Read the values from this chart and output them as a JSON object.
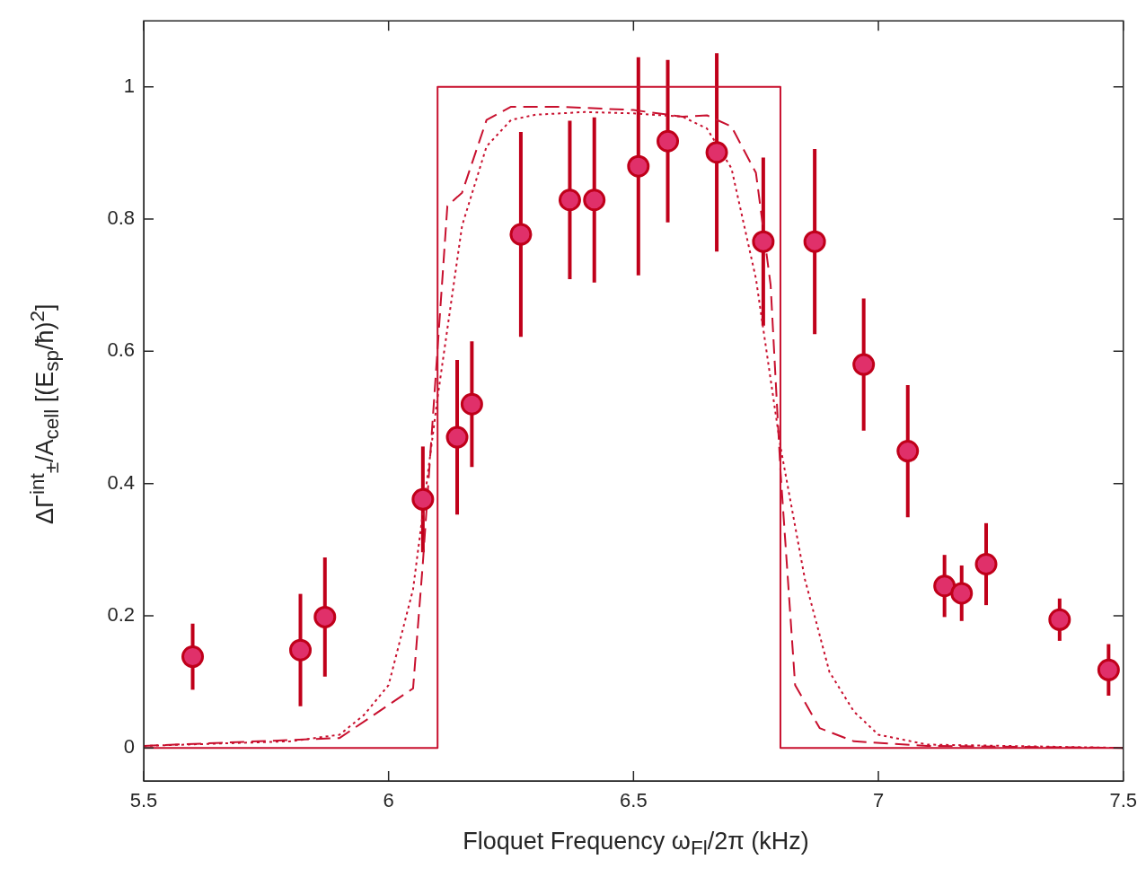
{
  "chart_data": {
    "type": "scatter",
    "xlabel": "Floquet Frequency ω$_{Fl}$/2π (kHz)",
    "ylabel": "ΔΓ$^{int}$$_{±}$/A$_{cell}$  [(E$_{sp}$/ħ)$^{2}$]",
    "xlim": [
      5.5,
      7.5
    ],
    "xticks": [
      5.5,
      6,
      6.5,
      7,
      7.5
    ],
    "ylim": [
      -0.05,
      1.1
    ],
    "yticks": [
      0,
      0.2,
      0.4,
      0.6,
      0.8,
      1
    ],
    "grid": false,
    "legend": false,
    "series": [
      {
        "type": "line",
        "color": "#c8102e",
        "line_style": "solid",
        "marker": "none",
        "x": [
          5.5,
          6.1,
          6.1,
          6.8,
          6.8,
          7.5
        ],
        "values": [
          0,
          0,
          1,
          1,
          0,
          0
        ]
      },
      {
        "type": "line",
        "color": "#c8102e",
        "line_style": "dashed",
        "marker": "none",
        "x": [
          5.5,
          5.9,
          6.05,
          6.07,
          6.12,
          6.15,
          6.2,
          6.25,
          6.35,
          6.5,
          6.6,
          6.65,
          6.7,
          6.75,
          6.78,
          6.8,
          6.83,
          6.88,
          6.95,
          7.1,
          7.5
        ],
        "values": [
          0.003,
          0.015,
          0.09,
          0.28,
          0.82,
          0.84,
          0.95,
          0.97,
          0.97,
          0.965,
          0.955,
          0.957,
          0.94,
          0.87,
          0.7,
          0.42,
          0.095,
          0.03,
          0.01,
          0.003,
          0
        ]
      },
      {
        "type": "line",
        "color": "#c8102e",
        "line_style": "dotted",
        "marker": "none",
        "x": [
          5.5,
          5.8,
          5.9,
          5.95,
          6.0,
          6.05,
          6.1,
          6.15,
          6.2,
          6.25,
          6.3,
          6.4,
          6.5,
          6.6,
          6.65,
          6.7,
          6.75,
          6.8,
          6.85,
          6.9,
          6.95,
          7.0,
          7.1,
          7.5
        ],
        "values": [
          0.003,
          0.01,
          0.02,
          0.05,
          0.095,
          0.24,
          0.53,
          0.79,
          0.91,
          0.95,
          0.958,
          0.962,
          0.96,
          0.955,
          0.937,
          0.877,
          0.71,
          0.456,
          0.255,
          0.115,
          0.055,
          0.02,
          0.005,
          0
        ]
      },
      {
        "color": "#e0306a",
        "marker": "circle",
        "x": [
          5.6,
          5.82,
          5.87,
          6.07,
          6.14,
          6.17,
          6.27,
          6.37,
          6.42,
          6.51,
          6.57,
          6.67,
          6.765,
          6.87,
          6.97,
          7.06,
          7.135,
          7.17,
          7.22,
          7.37,
          7.47
        ],
        "values": [
          0.138,
          0.148,
          0.198,
          0.376,
          0.47,
          0.52,
          0.777,
          0.829,
          0.829,
          0.88,
          0.918,
          0.901,
          0.766,
          0.766,
          0.58,
          0.449,
          0.245,
          0.234,
          0.278,
          0.194,
          0.118
        ],
        "errors": [
          0.05,
          0.085,
          0.09,
          0.08,
          0.117,
          0.095,
          0.155,
          0.12,
          0.125,
          0.165,
          0.123,
          0.15,
          0.127,
          0.14,
          0.1,
          0.1,
          0.047,
          0.042,
          0.062,
          0.032,
          0.039
        ]
      }
    ]
  }
}
